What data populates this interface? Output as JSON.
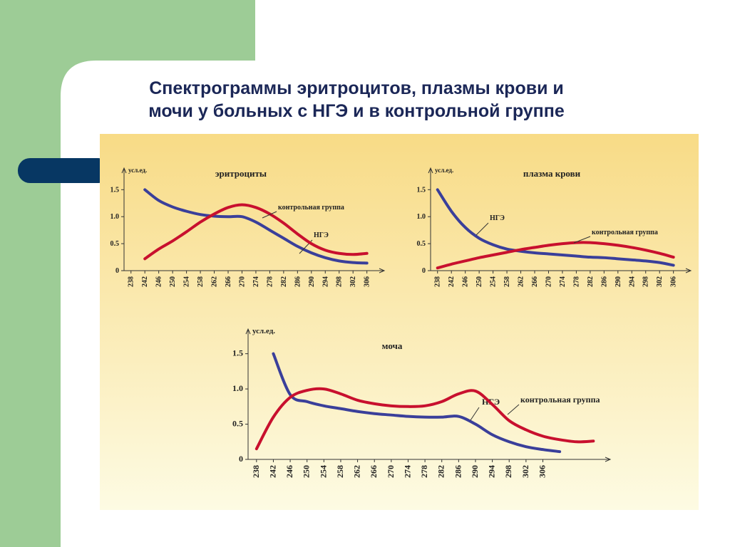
{
  "title": "Спектрограммы эритроцитов, плазмы крови и мочи у больных с НГЭ и в контрольной группе",
  "chart_data": [
    {
      "type": "line",
      "title": "эритроциты",
      "ylabel": "усл.ед.",
      "x": [
        238,
        242,
        246,
        250,
        254,
        258,
        262,
        266,
        270,
        274,
        278,
        282,
        286,
        290,
        294,
        298,
        302,
        306
      ],
      "xlim": [
        236,
        311
      ],
      "xticks": [
        238,
        242,
        246,
        250,
        254,
        258,
        262,
        266,
        270,
        274,
        278,
        282,
        286,
        290,
        294,
        298,
        302,
        306
      ],
      "ylim": [
        0,
        1.9
      ],
      "yticks": [
        0,
        0.5,
        {
          "value": 1,
          "label": "1.0"
        },
        1.5
      ],
      "series": [
        {
          "name": "НГЭ",
          "color": "#3a3f9a",
          "values": [
            null,
            1.5,
            1.3,
            1.18,
            1.1,
            1.04,
            1.01,
            1.0,
            1.0,
            0.9,
            0.75,
            0.6,
            0.45,
            0.33,
            0.24,
            0.18,
            0.15,
            0.14
          ]
        },
        {
          "name": "контрольная группа",
          "color": "#c8102e",
          "values": [
            null,
            0.22,
            0.4,
            0.55,
            0.72,
            0.9,
            1.05,
            1.17,
            1.22,
            1.17,
            1.05,
            0.88,
            0.68,
            0.5,
            0.38,
            0.32,
            0.3,
            0.32
          ]
        }
      ]
    },
    {
      "type": "line",
      "title": "плазма крови",
      "ylabel": "усл.ед.",
      "x": [
        238,
        242,
        246,
        250,
        254,
        258,
        262,
        266,
        270,
        274,
        278,
        282,
        286,
        290,
        294,
        298,
        302,
        306
      ],
      "xlim": [
        236,
        311
      ],
      "xticks": [
        238,
        242,
        246,
        250,
        254,
        258,
        262,
        266,
        270,
        274,
        278,
        282,
        286,
        290,
        294,
        298,
        302,
        306
      ],
      "ylim": [
        0,
        1.9
      ],
      "yticks": [
        0,
        0.5,
        {
          "value": 1,
          "label": "1.0"
        },
        1.5
      ],
      "series": [
        {
          "name": "НГЭ",
          "color": "#3a3f9a",
          "values": [
            1.5,
            1.1,
            0.8,
            0.6,
            0.48,
            0.4,
            0.36,
            0.33,
            0.31,
            0.29,
            0.27,
            0.25,
            0.24,
            0.22,
            0.2,
            0.18,
            0.15,
            0.1
          ]
        },
        {
          "name": "контрольная группа",
          "color": "#c8102e",
          "values": [
            0.05,
            0.12,
            0.18,
            0.24,
            0.29,
            0.34,
            0.39,
            0.43,
            0.47,
            0.5,
            0.52,
            0.52,
            0.5,
            0.47,
            0.43,
            0.38,
            0.32,
            0.25
          ]
        }
      ]
    },
    {
      "type": "line",
      "title": "моча",
      "ylabel": "усл.ед.",
      "x": [
        238,
        242,
        246,
        250,
        254,
        258,
        262,
        266,
        270,
        274,
        278,
        282,
        286,
        290,
        294,
        298,
        302,
        306,
        310,
        314,
        318
      ],
      "xlim": [
        236,
        322
      ],
      "xticks": [
        238,
        242,
        246,
        250,
        254,
        258,
        262,
        266,
        270,
        274,
        278,
        282,
        286,
        290,
        294,
        298,
        302,
        306
      ],
      "ylim": [
        0,
        1.85
      ],
      "yticks": [
        0,
        0.5,
        {
          "value": 1,
          "label": "1.0"
        },
        1.5
      ],
      "series": [
        {
          "name": "НГЭ",
          "color": "#3a3f9a",
          "values": [
            null,
            1.5,
            0.92,
            0.82,
            0.76,
            0.72,
            0.68,
            0.65,
            0.63,
            0.61,
            0.6,
            0.6,
            0.61,
            0.5,
            0.35,
            0.25,
            0.18,
            0.14,
            0.11,
            null,
            null
          ]
        },
        {
          "name": "контрольная группа",
          "color": "#c8102e",
          "values": [
            0.15,
            0.6,
            0.88,
            0.98,
            1.0,
            0.93,
            0.84,
            0.79,
            0.76,
            0.75,
            0.76,
            0.82,
            0.93,
            0.97,
            0.78,
            0.55,
            0.42,
            0.33,
            0.28,
            0.25,
            0.26
          ]
        }
      ]
    }
  ]
}
